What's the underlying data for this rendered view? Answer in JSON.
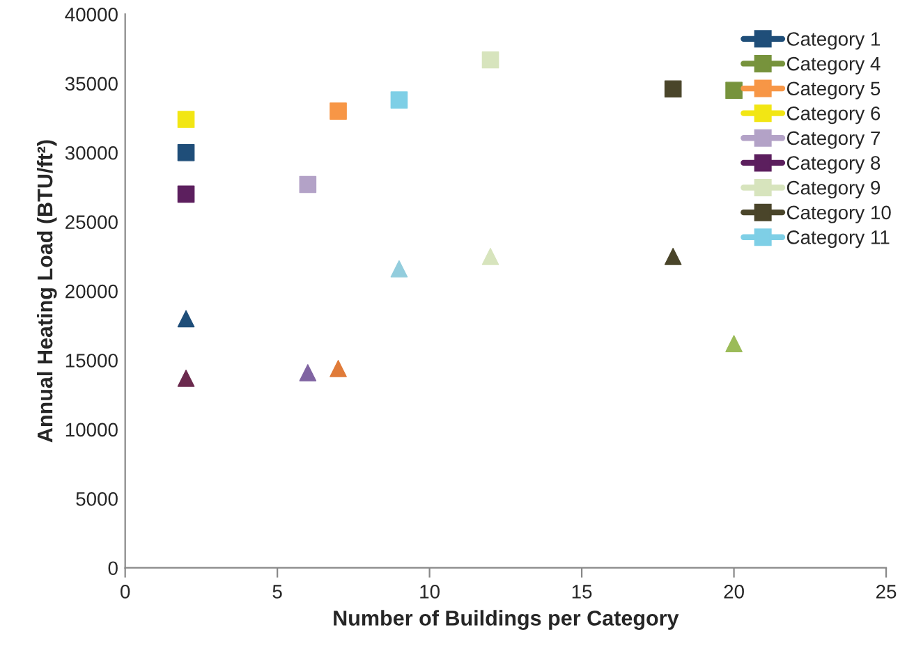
{
  "chart_data": {
    "type": "scatter",
    "xlabel": "Number of Buildings per Category",
    "ylabel": "Annual Heating Load (BTU/ft²)",
    "xlim": [
      0,
      25
    ],
    "xticks": [
      0,
      5,
      10,
      15,
      20,
      25
    ],
    "ylim": [
      0,
      40000
    ],
    "yticks": [
      0,
      5000,
      10000,
      15000,
      20000,
      25000,
      30000,
      35000,
      40000
    ],
    "grid": false,
    "legend": "top right",
    "series": [
      {
        "name": "Category 1",
        "color": "#1f4e79",
        "marker": "square",
        "x": [
          2
        ],
        "values": [
          30000
        ]
      },
      {
        "name": "Category 4",
        "color": "#77933c",
        "marker": "square",
        "x": [
          20
        ],
        "values": [
          34500
        ]
      },
      {
        "name": "Category 5",
        "color": "#f79646",
        "marker": "square",
        "x": [
          7
        ],
        "values": [
          33000
        ]
      },
      {
        "name": "Category 6",
        "color": "#f2e614",
        "marker": "square",
        "x": [
          2
        ],
        "values": [
          32400
        ]
      },
      {
        "name": "Category 7",
        "color": "#b3a2c7",
        "marker": "square",
        "x": [
          6
        ],
        "values": [
          27700
        ]
      },
      {
        "name": "Category 8",
        "color": "#5c1f5e",
        "marker": "square",
        "x": [
          2
        ],
        "values": [
          27000
        ]
      },
      {
        "name": "Category 9",
        "color": "#d7e4bd",
        "marker": "square",
        "x": [
          12
        ],
        "values": [
          36700
        ]
      },
      {
        "name": "Category 10",
        "color": "#4a452a",
        "marker": "square",
        "x": [
          18
        ],
        "values": [
          34600
        ]
      },
      {
        "name": "Category 11",
        "color": "#7ecfe6",
        "marker": "square",
        "x": [
          9
        ],
        "values": [
          33800
        ]
      },
      {
        "color": "#1f4e79",
        "marker": "triangle",
        "x": [
          2
        ],
        "values": [
          18000
        ]
      },
      {
        "color": "#9bbb59",
        "marker": "triangle",
        "x": [
          20
        ],
        "values": [
          16200
        ]
      },
      {
        "color": "#e07b39",
        "marker": "triangle",
        "x": [
          7
        ],
        "values": [
          14400
        ]
      },
      {
        "color": "#8064a2",
        "marker": "triangle",
        "x": [
          6
        ],
        "values": [
          14100
        ]
      },
      {
        "color": "#6b2a4e",
        "marker": "triangle",
        "x": [
          2
        ],
        "values": [
          13700
        ]
      },
      {
        "color": "#d7e4bd",
        "marker": "triangle",
        "x": [
          12
        ],
        "values": [
          22500
        ]
      },
      {
        "color": "#4a452a",
        "marker": "triangle",
        "x": [
          18
        ],
        "values": [
          22500
        ]
      },
      {
        "color": "#93cddd",
        "marker": "triangle",
        "x": [
          9
        ],
        "values": [
          21600
        ]
      }
    ]
  }
}
